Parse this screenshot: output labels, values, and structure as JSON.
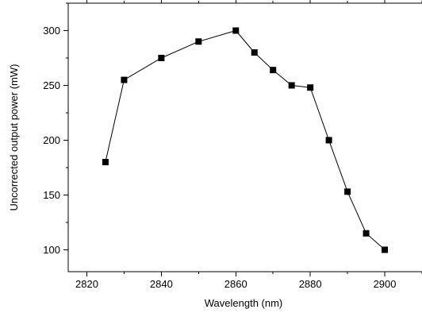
{
  "chart_data": {
    "type": "line",
    "title": "",
    "xlabel": "Wavelength (nm)",
    "ylabel": "Uncorrected output power (mW)",
    "xlim": [
      2815,
      2910
    ],
    "ylim": [
      80,
      325
    ],
    "x_ticks": [
      2820,
      2840,
      2860,
      2880,
      2900
    ],
    "y_ticks": [
      100,
      150,
      200,
      250,
      300
    ],
    "x_tick_labels": [
      "2820",
      "2840",
      "2860",
      "2880",
      "2900"
    ],
    "y_tick_labels": [
      "100",
      "150",
      "200",
      "250",
      "300"
    ],
    "grid": false,
    "legend": "none",
    "series": [
      {
        "marker": "square",
        "color": "#000000",
        "x": [
          2825,
          2830,
          2840,
          2850,
          2860,
          2865,
          2870,
          2875,
          2880,
          2885,
          2890,
          2895,
          2900
        ],
        "y": [
          180,
          255,
          275,
          290,
          300,
          280,
          264,
          250,
          248,
          200,
          153,
          115,
          100
        ]
      }
    ]
  }
}
